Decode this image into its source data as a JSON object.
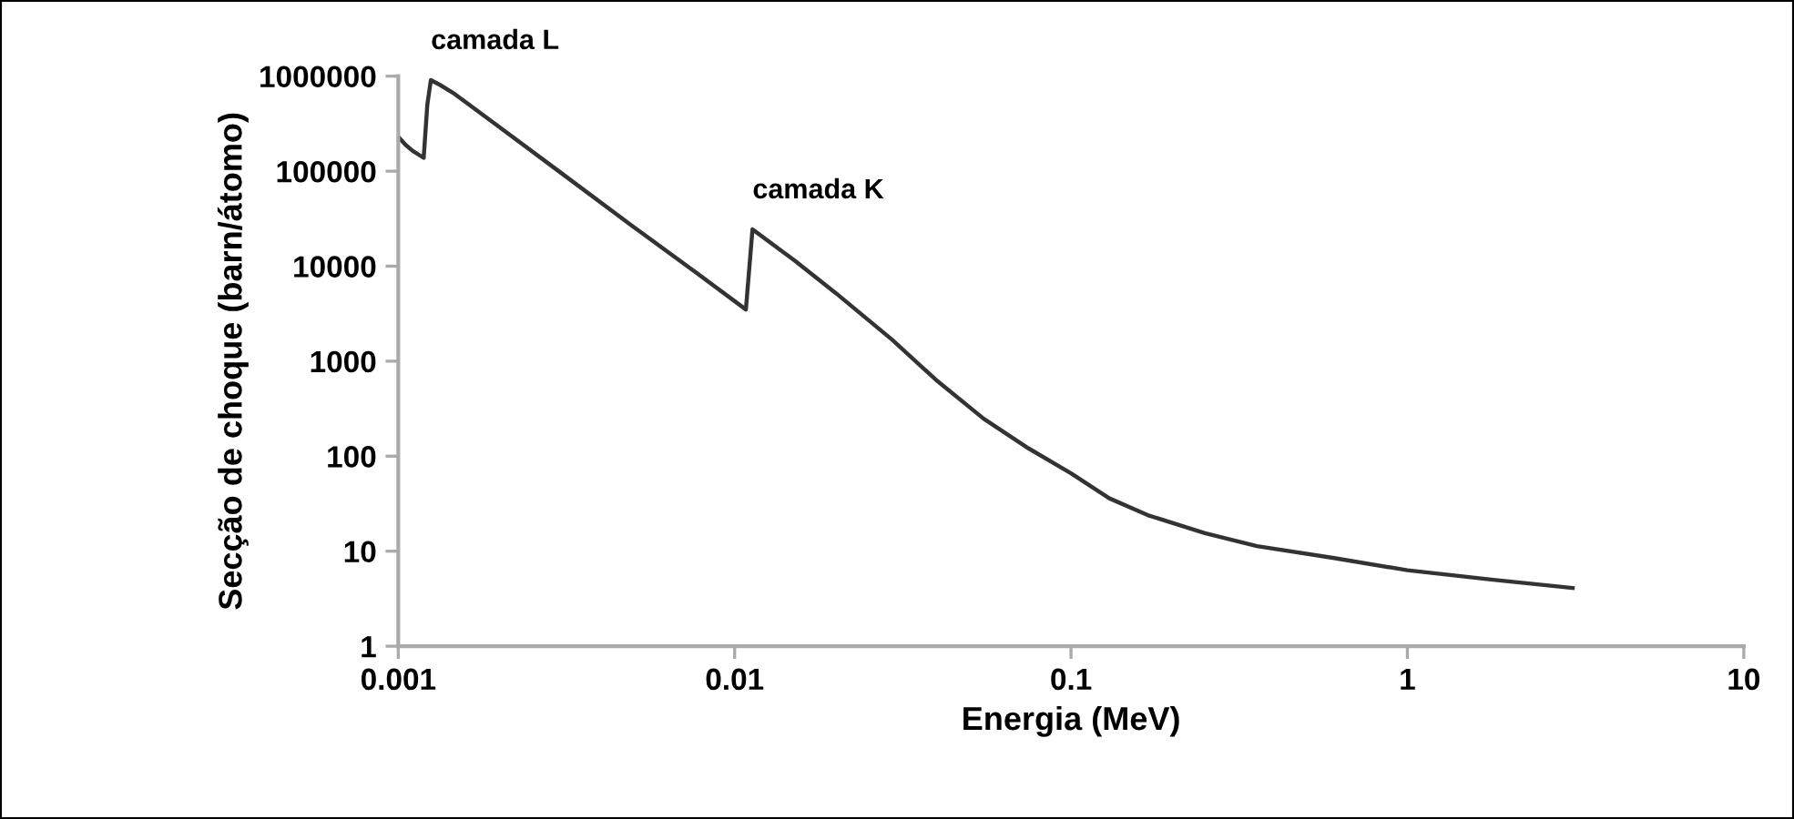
{
  "chart_data": {
    "type": "line",
    "xlabel": "Energia (MeV)",
    "ylabel": "Secção de choque (barn/átomo)",
    "log": "xy",
    "xlim": [
      0.001,
      10
    ],
    "ylim": [
      1,
      1000000
    ],
    "xticks": [
      0.001,
      0.01,
      0.1,
      1,
      10
    ],
    "yticks": [
      1,
      10,
      100,
      1000,
      10000,
      100000,
      1000000
    ],
    "grid": false,
    "legend": false,
    "marker": "none",
    "line_style": "solid",
    "series": [
      {
        "color": "#333333",
        "x": [
          0.001,
          0.00105,
          0.0011,
          0.00119,
          0.00122,
          0.00125,
          0.00133,
          0.00147,
          0.002,
          0.003,
          0.005,
          0.0075,
          0.0108,
          0.0113,
          0.0151,
          0.02,
          0.0294,
          0.04,
          0.055,
          0.075,
          0.1,
          0.13,
          0.169,
          0.25,
          0.357,
          0.6,
          1,
          1.8,
          3.1
        ],
        "values": [
          230000,
          190000,
          165000,
          138000,
          500000,
          910000,
          810000,
          650000,
          290000,
          100000,
          26000,
          9100,
          3500,
          24400,
          11400,
          5200,
          1680,
          620,
          248,
          120,
          66,
          36,
          24,
          15.5,
          11.3,
          8.5,
          6.3,
          5,
          4.1
        ]
      }
    ],
    "annotations": [
      {
        "text": "camada L",
        "x": 0.00125,
        "y": 910000
      },
      {
        "text": "camada K",
        "x": 0.0113,
        "y": 24400
      }
    ]
  }
}
